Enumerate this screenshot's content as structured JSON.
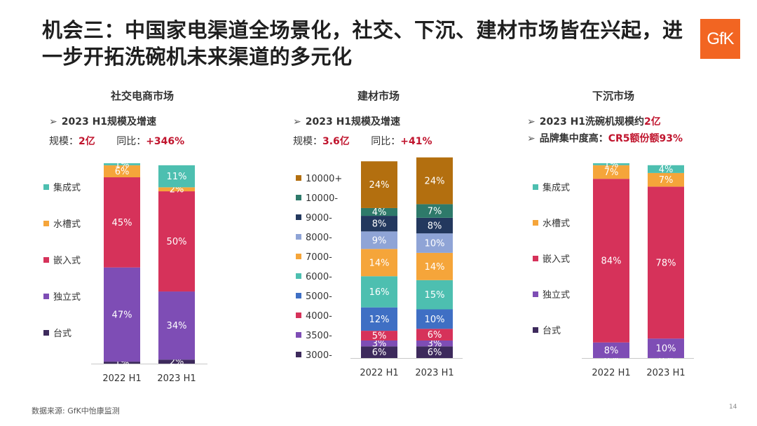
{
  "title": "机会三：中国家电渠道全场景化，社交、下沉、建材市场皆在兴起，进一步开拓洗碗机未来渠道的多元化",
  "logo": "GfK",
  "source": "数据来源: GfK中怡康监测",
  "page_number": "14",
  "panels": {
    "social": {
      "title": "社交电商市场",
      "line1": "2023 H1规模及增速",
      "scale_label": "规模：",
      "scale_value": "2亿",
      "yoy_label": "同比：",
      "yoy_value": "+346%"
    },
    "building": {
      "title": "建材市场",
      "line1": "2023 H1规模及增速",
      "scale_label": "规模：",
      "scale_value": "3.6亿",
      "yoy_label": "同比：",
      "yoy_value": "+41%"
    },
    "sinking": {
      "title": "下沉市场",
      "line1_prefix": "2023 H1洗碗机规模约",
      "line1_value": "2亿",
      "line2_prefix": "品牌集中度高：",
      "line2_value": "CR5额份额93%"
    }
  },
  "chart_data": [
    {
      "type": "bar",
      "stacked": true,
      "normalized": true,
      "categories": [
        "2022 H1",
        "2023 H1"
      ],
      "legend_placement": "left",
      "series": [
        {
          "name": "台式",
          "color": "#3d2a5c",
          "values": [
            1,
            2
          ],
          "labels": [
            "1%",
            "2%"
          ]
        },
        {
          "name": "独立式",
          "color": "#7e4db5",
          "values": [
            47,
            34
          ],
          "labels": [
            "47%",
            "34%"
          ]
        },
        {
          "name": "嵌入式",
          "color": "#d6325a",
          "values": [
            45,
            50
          ],
          "labels": [
            "45%",
            "50%"
          ]
        },
        {
          "name": "水槽式",
          "color": "#f5a53a",
          "values": [
            6,
            2
          ],
          "labels": [
            "6%",
            "2%"
          ]
        },
        {
          "name": "集成式",
          "color": "#4dbfb0",
          "values": [
            1,
            11
          ],
          "labels": [
            "1%",
            "11%"
          ]
        }
      ]
    },
    {
      "type": "bar",
      "stacked": true,
      "normalized": true,
      "categories": [
        "2022 H1",
        "2023 H1"
      ],
      "legend_placement": "left",
      "series": [
        {
          "name": "3000-",
          "color": "#3d2a5c",
          "values": [
            6,
            6
          ],
          "labels": [
            "6%",
            "6%"
          ]
        },
        {
          "name": "3500-",
          "color": "#7e4db5",
          "values": [
            3,
            3
          ],
          "labels": [
            "3%",
            "3%"
          ]
        },
        {
          "name": "4000-",
          "color": "#d6325a",
          "values": [
            5,
            6
          ],
          "labels": [
            "5%",
            "6%"
          ]
        },
        {
          "name": "5000-",
          "color": "#3f6fc4",
          "values": [
            12,
            10
          ],
          "labels": [
            "12%",
            "10%"
          ]
        },
        {
          "name": "6000-",
          "color": "#4dbfb0",
          "values": [
            16,
            15
          ],
          "labels": [
            "16%",
            "15%"
          ]
        },
        {
          "name": "7000-",
          "color": "#f5a53a",
          "values": [
            14,
            14
          ],
          "labels": [
            "14%",
            "14%"
          ]
        },
        {
          "name": "8000-",
          "color": "#8fa4d6",
          "values": [
            9,
            10
          ],
          "labels": [
            "9%",
            "10%"
          ]
        },
        {
          "name": "9000-",
          "color": "#23385e",
          "values": [
            8,
            8
          ],
          "labels": [
            "8%",
            "8%"
          ]
        },
        {
          "name": "10000-",
          "color": "#2e7a6a",
          "values": [
            4,
            7
          ],
          "labels": [
            "4%",
            "7%"
          ]
        },
        {
          "name": "10000+",
          "color": "#b36f0f",
          "values": [
            24,
            24
          ],
          "labels": [
            "24%",
            "24%"
          ]
        }
      ]
    },
    {
      "type": "bar",
      "stacked": true,
      "normalized": true,
      "categories": [
        "2022 H1",
        "2023 H1"
      ],
      "legend_placement": "left",
      "series": [
        {
          "name": "台式",
          "color": "#3d2a5c",
          "values": [
            0,
            0
          ],
          "labels": [
            "0%",
            "0%"
          ]
        },
        {
          "name": "独立式",
          "color": "#7e4db5",
          "values": [
            8,
            10
          ],
          "labels": [
            "8%",
            "10%"
          ]
        },
        {
          "name": "嵌入式",
          "color": "#d6325a",
          "values": [
            84,
            78
          ],
          "labels": [
            "84%",
            "78%"
          ]
        },
        {
          "name": "水槽式",
          "color": "#f5a53a",
          "values": [
            7,
            7
          ],
          "labels": [
            "7%",
            "7%"
          ]
        },
        {
          "name": "集成式",
          "color": "#4dbfb0",
          "values": [
            1,
            4
          ],
          "labels": [
            "1%",
            "4%"
          ]
        }
      ]
    }
  ]
}
